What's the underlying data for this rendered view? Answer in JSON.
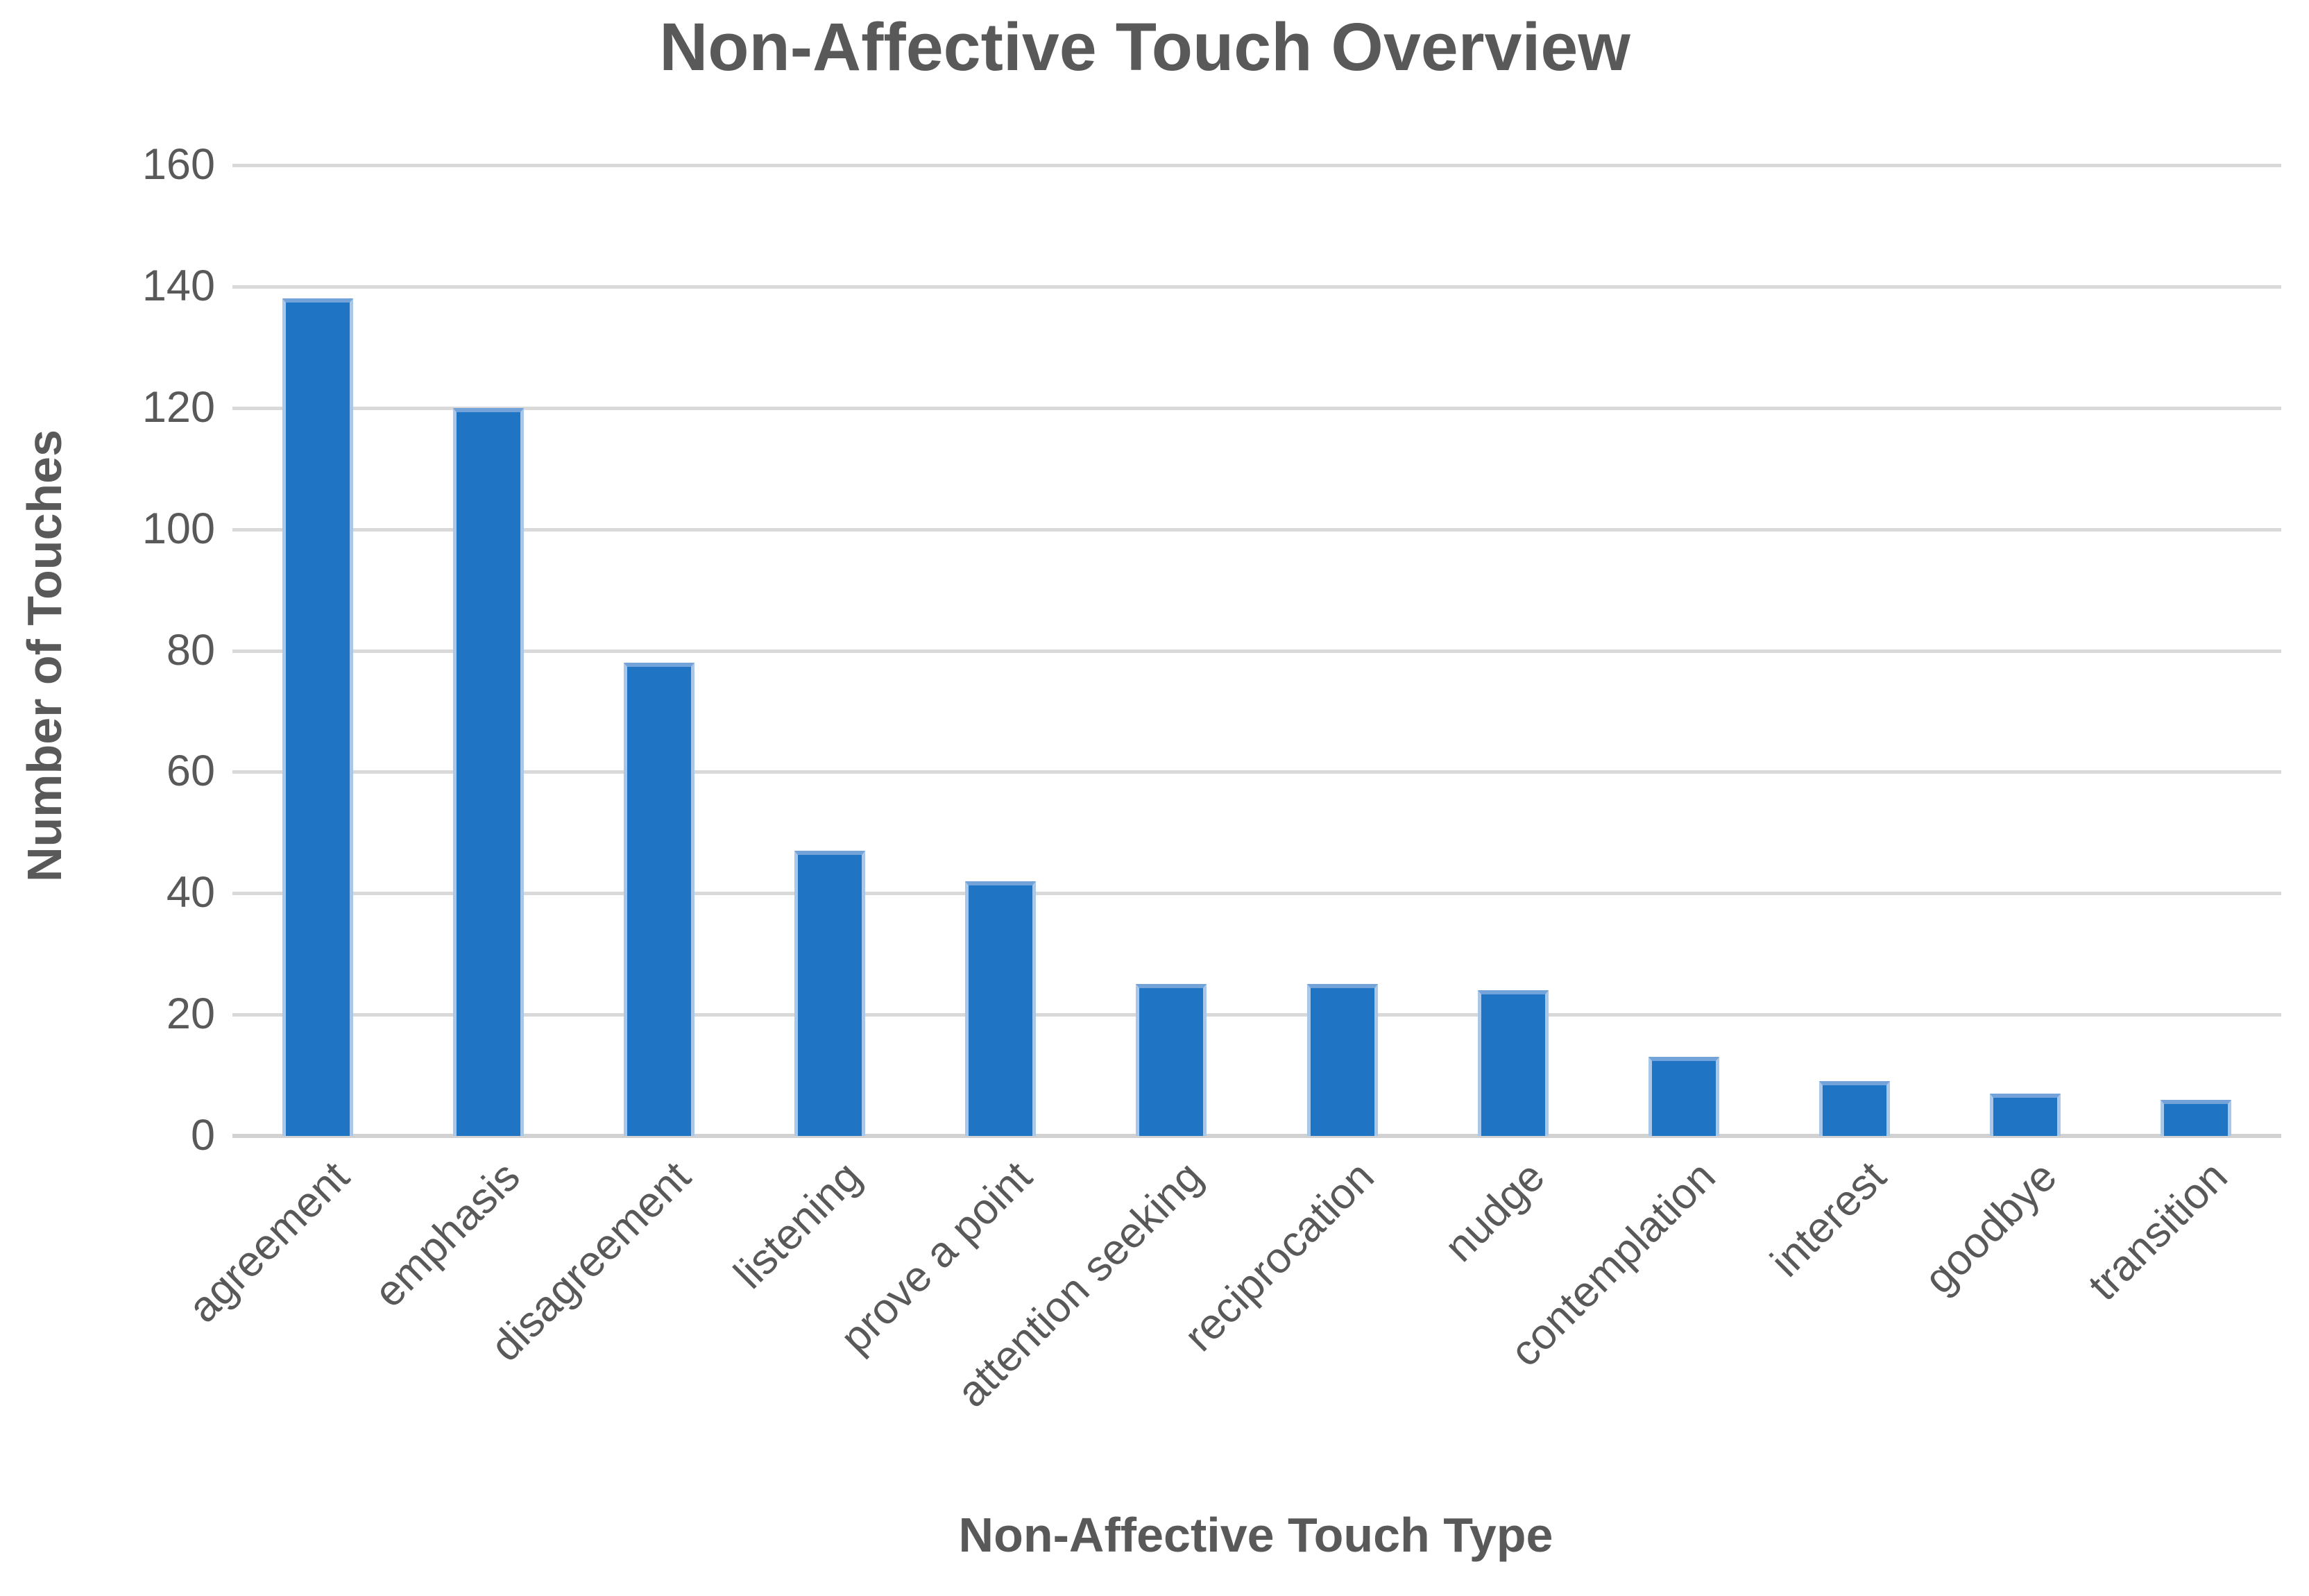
{
  "chart_data": {
    "type": "bar",
    "title": "Non-Affective Touch Overview",
    "xlabel": "Non-Affective Touch Type",
    "ylabel": "Number of Touches",
    "categories": [
      "agreement",
      "emphasis",
      "disagreement",
      "listening",
      "prove a point",
      "attention seeking",
      "reciprocation",
      "nudge",
      "contemplation",
      "interest",
      "goodbye",
      "transition"
    ],
    "values": [
      138,
      120,
      78,
      47,
      42,
      25,
      25,
      24,
      13,
      9,
      7,
      6
    ],
    "ylim": [
      0,
      160
    ],
    "ytick_step": 20,
    "yticks": [
      160,
      140,
      120,
      100,
      80,
      60,
      40,
      20,
      0
    ],
    "grid": "horizontal",
    "legend": "none",
    "colors": {
      "bar_fill": "#1F74C4",
      "bar_edge": "#A9C7E9",
      "bar_top_edge": "#74A3D9",
      "gridline": "#D9D9D9",
      "axis_line": "#D2D2D2",
      "text": "#595959",
      "background": "#FFFFFF"
    }
  }
}
